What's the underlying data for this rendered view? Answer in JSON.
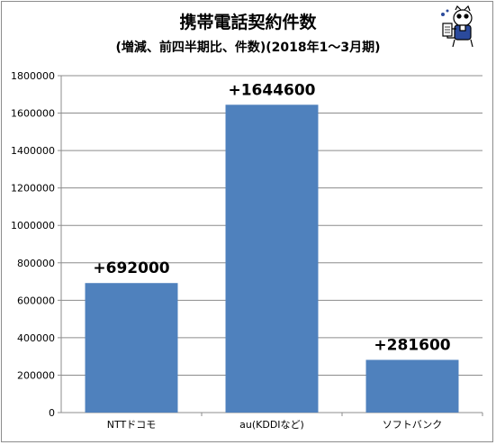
{
  "chart_data": {
    "type": "bar",
    "title": "携帯電話契約件数",
    "subtitle": "(増減、前四半期比、件数)(2018年1～3月期)",
    "categories": [
      "NTTドコモ",
      "au(KDDIなど)",
      "ソフトバンク"
    ],
    "values": [
      692000,
      1644600,
      281600
    ],
    "data_labels": [
      "+692000",
      "+1644600",
      "+281600"
    ],
    "ylim": [
      0,
      1800000
    ],
    "yticks": [
      0,
      200000,
      400000,
      600000,
      800000,
      1000000,
      1200000,
      1400000,
      1600000,
      1800000
    ],
    "ytick_labels": [
      "0",
      "200000",
      "400000",
      "600000",
      "800000",
      "1000000",
      "1200000",
      "1400000",
      "1600000",
      "1800000"
    ],
    "xlabel": "",
    "ylabel": "",
    "grid": "horizontal",
    "legend": "none",
    "bar_color": "#4f81bd"
  },
  "decoration": {
    "mascot_icon": "cartoon-mascot-holding-paper"
  }
}
